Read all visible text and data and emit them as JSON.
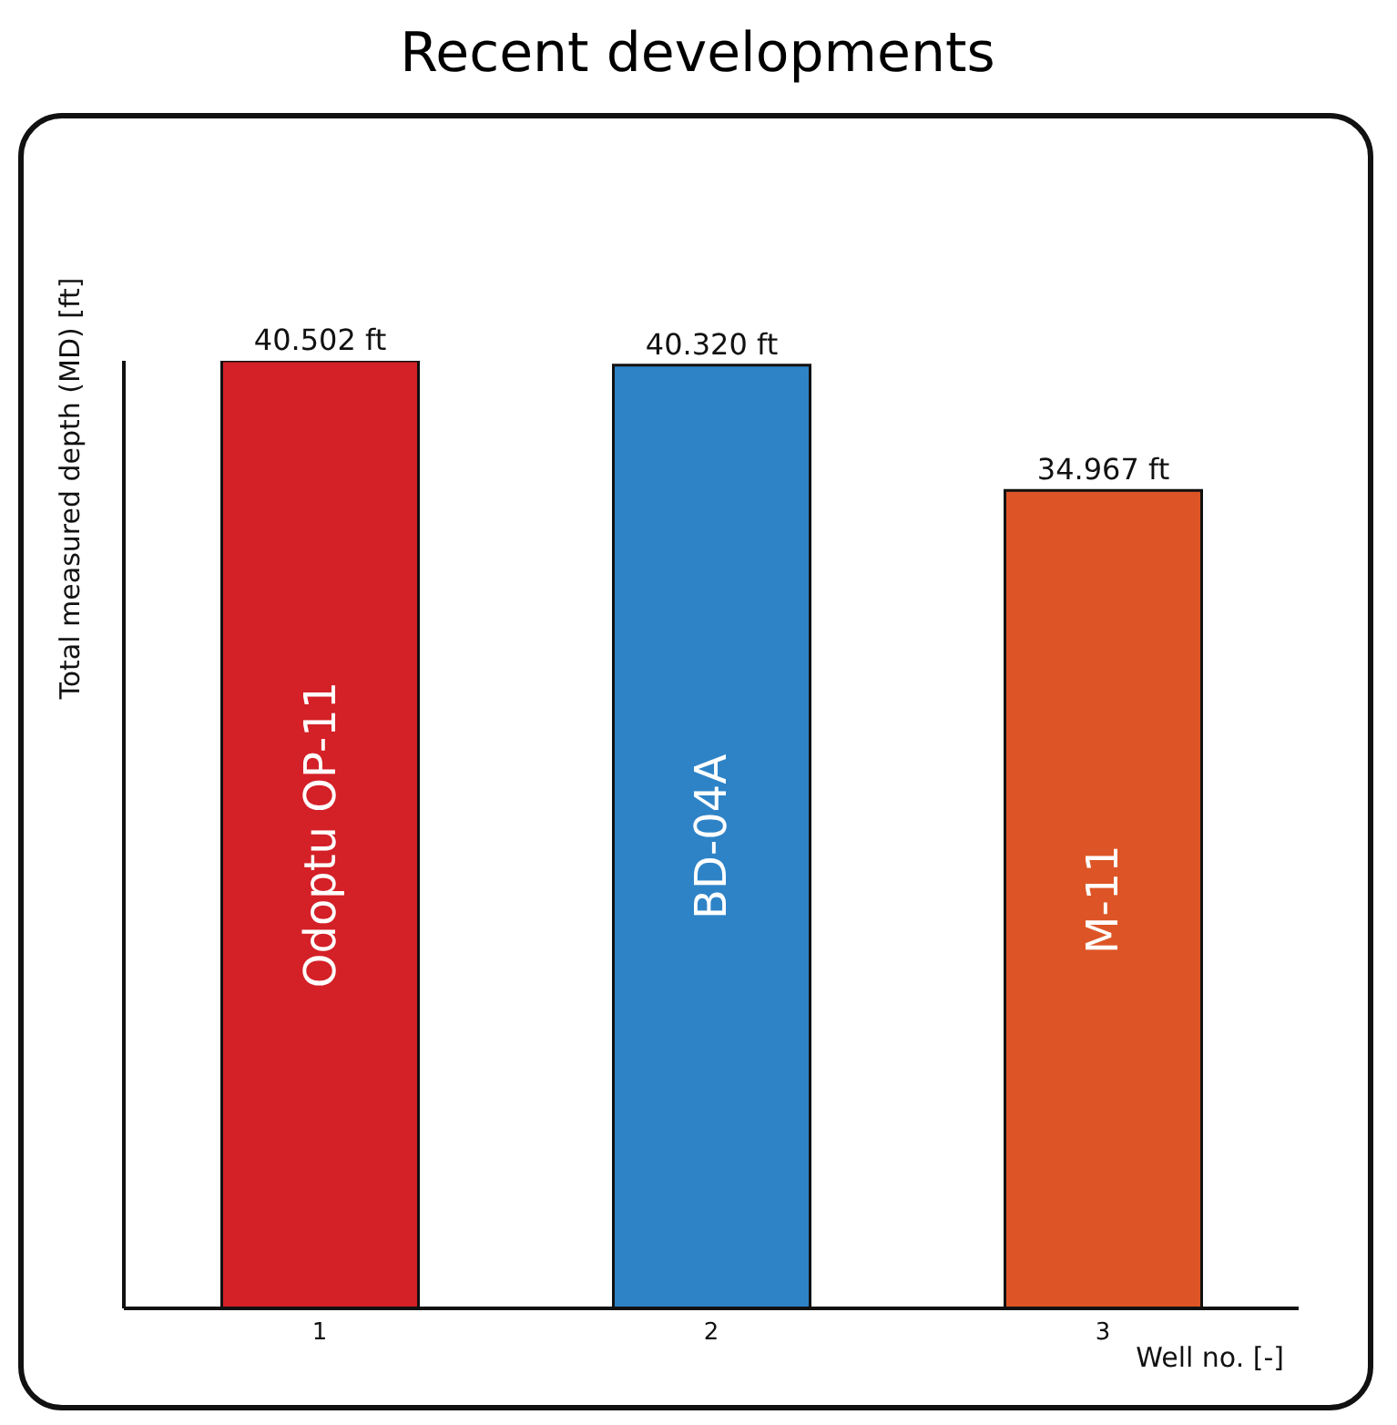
{
  "chart_data": {
    "type": "bar",
    "title": "Recent developments",
    "xlabel": "Well no. [-]",
    "ylabel": "Total measured depth (MD) [ft]",
    "categories": [
      "1",
      "2",
      "3"
    ],
    "values": [
      40.502,
      40.32,
      34.967
    ],
    "colors": [
      "#d42027",
      "#2e83c7",
      "#dd5526"
    ],
    "value_labels": [
      "40.502 ft",
      "40.320 ft",
      "34.967 ft"
    ],
    "annotations": [
      "Odoptu OP-11",
      "BD-04A",
      "M-11"
    ],
    "tick_labels": "x"
  }
}
